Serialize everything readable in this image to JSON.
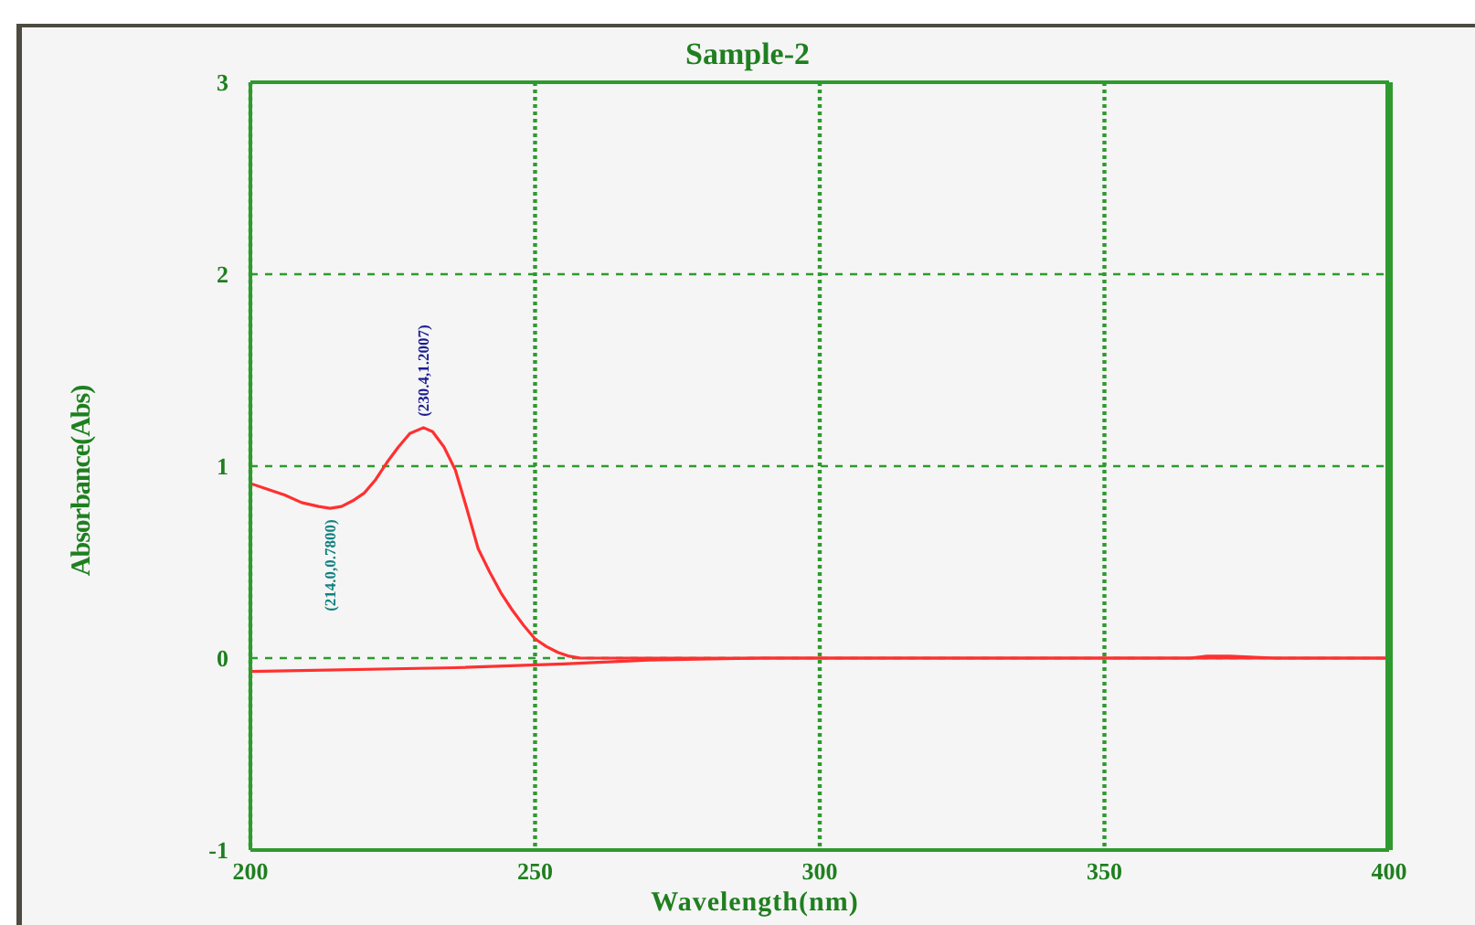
{
  "chart_data": {
    "type": "line",
    "title": "Sample-2",
    "xlabel": "Wavelength(nm)",
    "ylabel": "Absorbance(Abs)",
    "xlim": [
      200,
      400
    ],
    "ylim": [
      -1,
      3
    ],
    "xticks": [
      200,
      250,
      300,
      350,
      400
    ],
    "yticks": [
      -1,
      0,
      1,
      2,
      3
    ],
    "grid": true,
    "series": [
      {
        "color": "#ff3030",
        "x": [
          200,
          203,
          206,
          209,
          212,
          214,
          216,
          218,
          220,
          222,
          224,
          226,
          228,
          230.4,
          232,
          234,
          236,
          238,
          240,
          242,
          244,
          246,
          248,
          250,
          252,
          254,
          256,
          258,
          262,
          270,
          300,
          350,
          365,
          368,
          372,
          380,
          400
        ],
        "values": [
          0.91,
          0.88,
          0.85,
          0.81,
          0.79,
          0.78,
          0.79,
          0.82,
          0.86,
          0.93,
          1.02,
          1.1,
          1.17,
          1.2007,
          1.18,
          1.1,
          0.98,
          0.78,
          0.57,
          0.45,
          0.34,
          0.25,
          0.17,
          0.1,
          0.06,
          0.03,
          0.01,
          0.0,
          0.0,
          0.0,
          0.0,
          0.0,
          0.0,
          0.01,
          0.01,
          0.0,
          0.0
        ]
      },
      {
        "color": "#ff3030",
        "x": [
          200,
          236,
          255,
          270,
          290,
          400
        ],
        "values": [
          -0.07,
          -0.05,
          -0.03,
          -0.01,
          0.0,
          0.0
        ]
      }
    ],
    "annotations": [
      {
        "text": "(214.0,0.7800)",
        "x": 214,
        "y": 0.78
      },
      {
        "text": "(230.4,1.2007)",
        "x": 230.4,
        "y": 1.2007
      }
    ]
  }
}
